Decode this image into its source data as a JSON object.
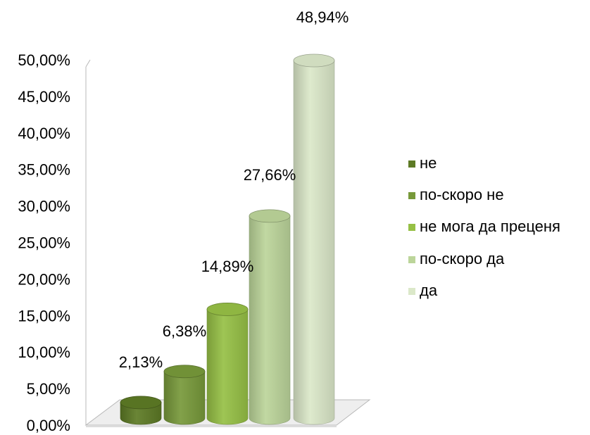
{
  "chart_data": {
    "type": "bar",
    "style": "3d-cylinder",
    "categories": [
      "не",
      "по-скоро не",
      "не мога да преценя",
      "по-скоро да",
      "да"
    ],
    "values": [
      2.13,
      6.38,
      14.89,
      27.66,
      48.94
    ],
    "data_labels": [
      "2,13%",
      "6,38%",
      "14,89%",
      "27,66%",
      "48,94%"
    ],
    "ylim": [
      0,
      50
    ],
    "y_ticks": [
      0,
      5,
      10,
      15,
      20,
      25,
      30,
      35,
      40,
      45,
      50
    ],
    "y_tick_labels": [
      "0,00%",
      "5,00%",
      "10,00%",
      "15,00%",
      "20,00%",
      "25,00%",
      "30,00%",
      "35,00%",
      "40,00%",
      "45,00%",
      "50,00%"
    ],
    "grid": false,
    "legend": {
      "position": "right",
      "entries": [
        {
          "label": "не",
          "color": "#5d7a25"
        },
        {
          "label": "по-скоро не",
          "color": "#77993a"
        },
        {
          "label": "не мога да преценя",
          "color": "#96c045"
        },
        {
          "label": "по-скоро да",
          "color": "#bcd59a"
        },
        {
          "label": "да",
          "color": "#dbe8c9"
        }
      ]
    },
    "colors": [
      "#5d7a25",
      "#77993a",
      "#96c045",
      "#bcd59a",
      "#dbe8c9"
    ]
  }
}
